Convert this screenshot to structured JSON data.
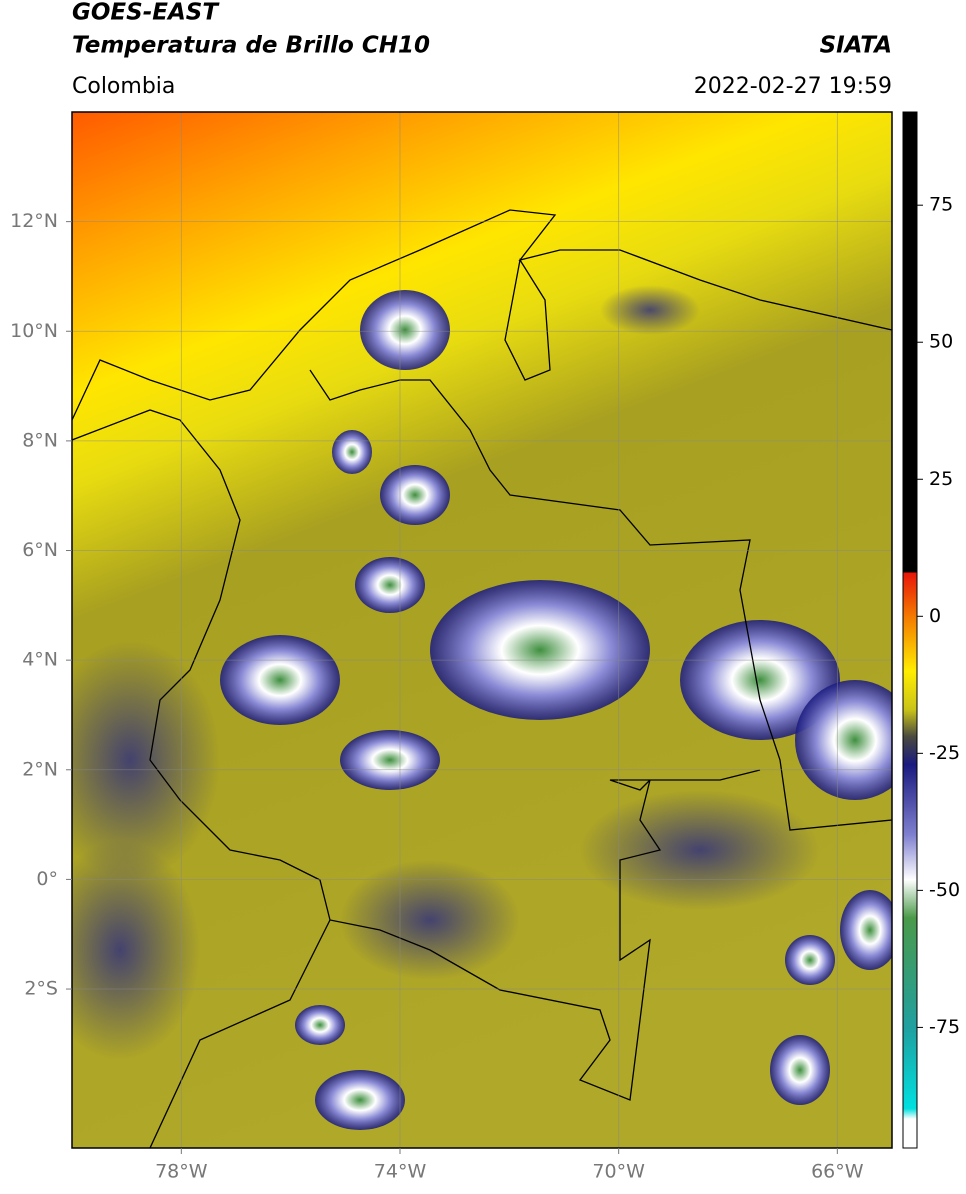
{
  "header": {
    "satellite": "GOES-EAST",
    "title": "Temperatura de Brillo CH10",
    "source": "SIATA",
    "region": "Colombia",
    "datetime": "2022-02-27 19:59"
  },
  "map": {
    "xlim": [
      -80,
      -65
    ],
    "ylim": [
      -4.9,
      14
    ],
    "xticks": [
      {
        "value": -78,
        "label": "78°W"
      },
      {
        "value": -74,
        "label": "74°W"
      },
      {
        "value": -70,
        "label": "70°W"
      },
      {
        "value": -66,
        "label": "66°W"
      }
    ],
    "yticks": [
      {
        "value": 12,
        "label": "12°N"
      },
      {
        "value": 10,
        "label": "10°N"
      },
      {
        "value": 8,
        "label": "8°N"
      },
      {
        "value": 6,
        "label": "6°N"
      },
      {
        "value": 4,
        "label": "4°N"
      },
      {
        "value": 2,
        "label": "2°N"
      },
      {
        "value": 0,
        "label": "0°"
      },
      {
        "value": -2,
        "label": "2°S"
      }
    ],
    "grid": true
  },
  "colorbar": {
    "lim": [
      -97,
      92
    ],
    "ticks": [
      75,
      50,
      25,
      0,
      -25,
      -50,
      -75
    ]
  }
}
